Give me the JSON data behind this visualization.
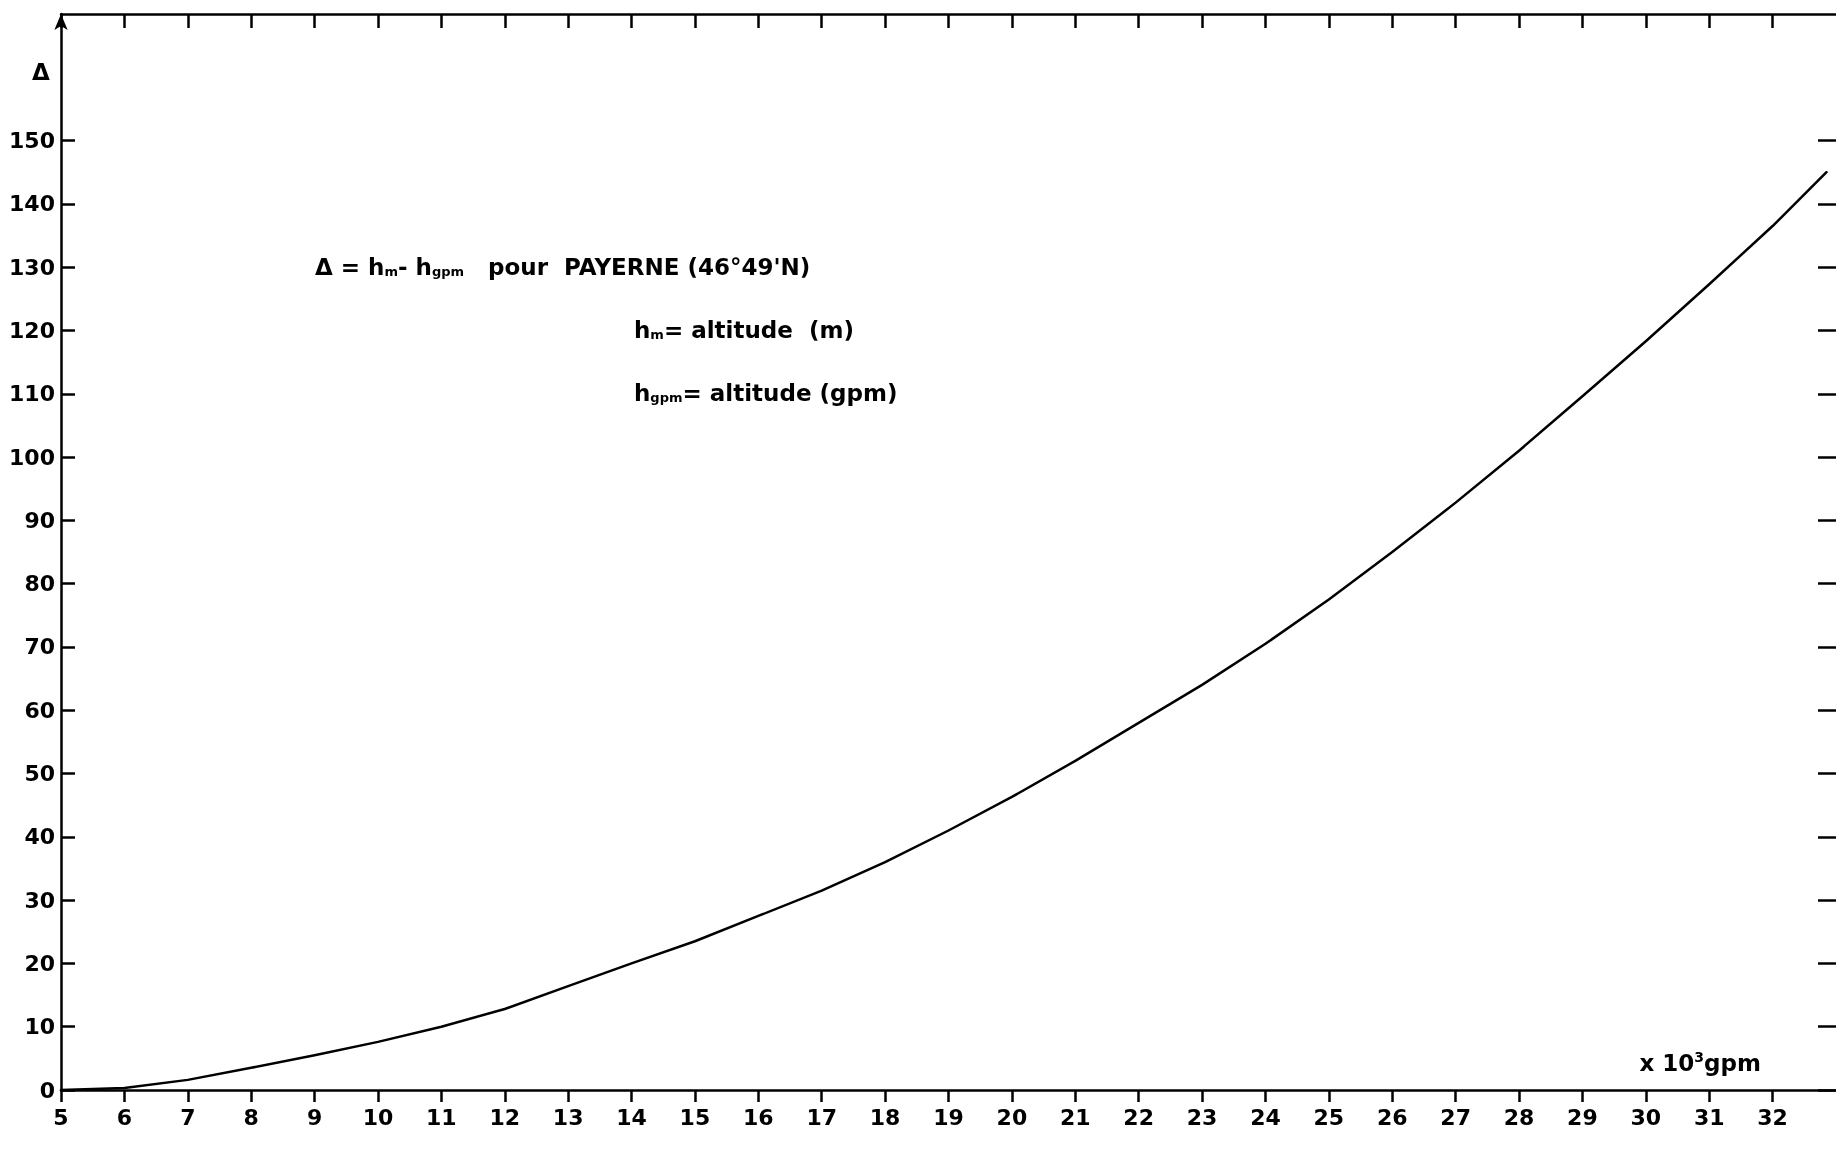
{
  "chart_data": {
    "type": "line",
    "xlabel": "x 10$^{3}$gpm",
    "ylabel": "Δ",
    "annotations": [
      "Δ = h$_{m}$- h$_{gpm}$   pour  PAYERNE (46°49'N)",
      "h$_{m}$= altitude  (m)",
      "h$_{gpm}$= altitude (gpm)"
    ],
    "x": [
      5,
      6,
      7,
      8,
      9,
      10,
      11,
      12,
      13,
      14,
      15,
      16,
      17,
      18,
      19,
      20,
      21,
      22,
      23,
      24,
      25,
      26,
      27,
      28,
      29,
      30,
      31,
      32,
      32.85
    ],
    "series": [
      {
        "color": "#000000",
        "values": [
          0,
          0.3,
          1.6,
          3.5,
          5.5,
          7.6,
          10,
          12.8,
          16.4,
          20,
          23.5,
          27.5,
          31.5,
          36,
          41,
          46.3,
          52,
          58,
          64,
          70.5,
          77.5,
          85,
          92.8,
          101,
          109.6,
          118.3,
          127.3,
          136.5,
          145
        ]
      }
    ],
    "xlim": [
      5,
      33
    ],
    "ylim": [
      0,
      170
    ],
    "xticks": [
      5,
      6,
      7,
      8,
      9,
      10,
      11,
      12,
      13,
      14,
      15,
      16,
      17,
      18,
      19,
      20,
      21,
      22,
      23,
      24,
      25,
      26,
      27,
      28,
      29,
      30,
      31,
      32
    ],
    "yticks": [
      0,
      10,
      20,
      30,
      40,
      50,
      60,
      70,
      80,
      90,
      100,
      110,
      120,
      130,
      140,
      150
    ],
    "marker": "none",
    "line_style": "solid"
  }
}
